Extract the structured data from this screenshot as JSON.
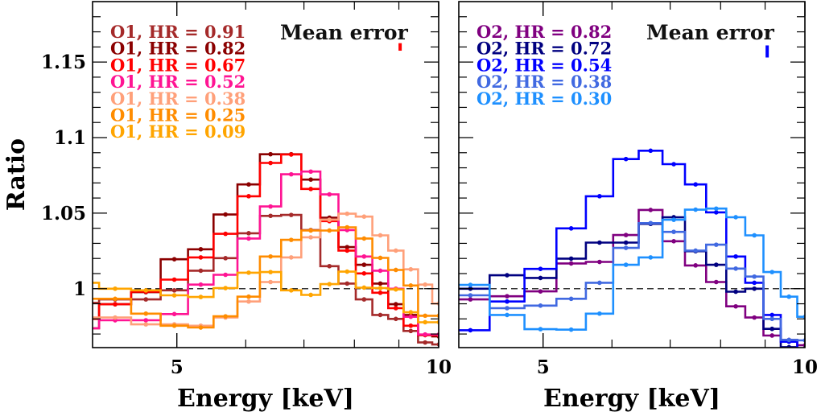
{
  "chart_data": [
    {
      "type": "line",
      "style": "step-with-markers",
      "xlabel": "Energy [keV]",
      "ylabel": "Ratio",
      "xscale": "log",
      "xlim": [
        4.0,
        10.0
      ],
      "ylim": [
        0.961,
        1.19
      ],
      "xticks": [
        {
          "value": 5,
          "label": "5"
        },
        {
          "value": 10,
          "label": "10"
        }
      ],
      "xminor": [
        6,
        7,
        8,
        9
      ],
      "yticks": [
        {
          "value": 1,
          "label": "1"
        },
        {
          "value": 1.05,
          "label": "1.05"
        },
        {
          "value": 1.1,
          "label": "1.1"
        },
        {
          "value": 1.15,
          "label": "1.15"
        }
      ],
      "reference_line": {
        "y": 1,
        "style": "dashed"
      },
      "bin_edges": [
        3.71,
        4.07,
        4.43,
        4.79,
        5.15,
        5.51,
        5.87,
        6.23,
        6.59,
        6.95,
        7.31,
        7.67,
        8.03,
        8.39,
        8.75,
        9.11,
        9.47,
        9.83,
        10.19
      ],
      "series": [
        {
          "name": "O1, HR = 0.91",
          "color": "#a52a2a",
          "values": [
            0.9906,
            0.9929,
            0.9929,
            0.9989,
            1.0119,
            1.0202,
            1.0367,
            1.0482,
            1.0488,
            1.0388,
            1.0149,
            1.0034,
            0.9929,
            0.9826,
            0.98,
            0.972,
            0.9644,
            0.9631
          ]
        },
        {
          "name": "O1, HR = 0.82",
          "color": "#8b0000",
          "values": [
            0.9738,
            0.9897,
            0.9977,
            1.0195,
            1.0261,
            1.0491,
            1.069,
            1.089,
            1.089,
            1.0722,
            1.047,
            1.0275,
            1.0158,
            1.0034,
            0.9897,
            0.9826,
            0.9693,
            0.9684
          ]
        },
        {
          "name": "O1, HR = 0.67",
          "color": "#ff0000",
          "values": [
            0.98,
            0.9897,
            0.998,
            1.006,
            1.0207,
            1.0363,
            1.0612,
            1.0832,
            1.0888,
            1.066,
            1.0447,
            1.0252,
            1.0101,
            0.9973,
            0.9871,
            0.9755,
            0.9693,
            0.9693
          ]
        },
        {
          "name": "O1, HR = 0.52",
          "color": "#ff1493",
          "values": [
            0.9738,
            0.9791,
            0.9791,
            0.9832,
            1.0027,
            1.0092,
            1.0332,
            1.0544,
            1.0757,
            1.0775,
            1.0624,
            1.0388,
            1.0213,
            1.0119,
            1.0,
            0.9814,
            0.9697,
            0.9697
          ]
        },
        {
          "name": "O1, HR = 0.38",
          "color": "#ffa07a",
          "values": [
            0.9809,
            0.9809,
            0.9764,
            0.9764,
            0.9755,
            0.9809,
            0.9915,
            1.0044,
            1.0207,
            1.034,
            1.0456,
            1.0496,
            1.0477,
            1.0353,
            1.0252,
            1.0128,
            1.0027,
            0.9902
          ]
        },
        {
          "name": "O1, HR = 0.25",
          "color": "#ff8c00",
          "values": [
            0.9933,
            0.9933,
            0.9835,
            0.9755,
            0.9743,
            0.9817,
            0.9947,
            1.0213,
            1.0323,
            1.0385,
            1.0385,
            1.0406,
            1.0332,
            1.0204,
            1.0124,
            1.0021,
            0.9821,
            0.9821
          ]
        },
        {
          "name": "O1, HR = 0.09",
          "color": "#ffa500",
          "values": [
            1.0039,
            1.0,
            0.9989,
            0.9956,
            0.9945,
            1.0004,
            1.0106,
            1.011,
            0.9989,
            0.9959,
            1.003,
            1.0113,
            1.0007,
            1.0004,
            0.9995,
            0.9844,
            0.9778,
            0.9778
          ]
        }
      ],
      "mean_error": {
        "label": "Mean error",
        "energy": 9.03,
        "center": 1.16,
        "half_width": 0.0025,
        "color": "#ff0000"
      }
    },
    {
      "type": "line",
      "style": "step-with-markers",
      "xlabel": "Energy [keV]",
      "xscale": "log",
      "xlim": [
        4.0,
        10.0
      ],
      "ylim": [
        0.961,
        1.19
      ],
      "xticks": [
        {
          "value": 5,
          "label": "5"
        },
        {
          "value": 10,
          "label": "10"
        }
      ],
      "xminor": [
        6,
        7,
        8,
        9
      ],
      "reference_line": {
        "y": 1,
        "style": "dashed"
      },
      "bin_edges": [
        3.92,
        4.34,
        4.76,
        5.18,
        5.6,
        6.02,
        6.44,
        6.86,
        7.28,
        7.7,
        8.12,
        8.54,
        8.96,
        9.38,
        9.8,
        10.22
      ],
      "series": [
        {
          "name": "O2, HR = 0.82",
          "color": "#800080",
          "values": [
            0.9929,
            0.995,
            0.9982,
            1.0167,
            1.0177,
            1.0355,
            1.0521,
            1.0314,
            1.0154,
            1.0044,
            0.9883,
            0.9809,
            0.969,
            0.9661,
            0.9626
          ]
        },
        {
          "name": "O2, HR = 0.72",
          "color": "#000080",
          "values": [
            1.0,
            1.0089,
            1.0071,
            1.0199,
            1.0305,
            1.0305,
            1.0429,
            1.0473,
            1.0248,
            1.0158,
            0.998,
            1.0,
            0.9734,
            0.9613,
            0.9605
          ]
        },
        {
          "name": "O2, HR = 0.54",
          "color": "#0000ff",
          "values": [
            0.9725,
            0.9915,
            1.0131,
            1.0399,
            1.0612,
            1.0858,
            1.0913,
            1.0824,
            1.069,
            1.0505,
            1.0213,
            1.0039,
            0.9826,
            0.9649,
            0.9587
          ]
        },
        {
          "name": "O2, HR = 0.38",
          "color": "#4169e1",
          "values": [
            0.9956,
            0.9871,
            0.9888,
            0.9933,
            1.0039,
            1.027,
            1.0434,
            1.0376,
            1.0252,
            1.0291,
            1.0133,
            1.008,
            0.98,
            0.9661,
            0.9658
          ]
        },
        {
          "name": "O2, HR = 0.30",
          "color": "#1e90ff",
          "values": [
            1.0025,
            0.9826,
            0.9732,
            0.9729,
            0.9835,
            1.0158,
            1.0207,
            1.0456,
            1.0523,
            1.053,
            1.0473,
            1.0353,
            1.011,
            0.9947,
            0.9814
          ]
        }
      ],
      "mean_error": {
        "label": "Mean error",
        "energy": 9.05,
        "center": 1.157,
        "half_width": 0.004,
        "color": "#0000ff"
      }
    }
  ]
}
